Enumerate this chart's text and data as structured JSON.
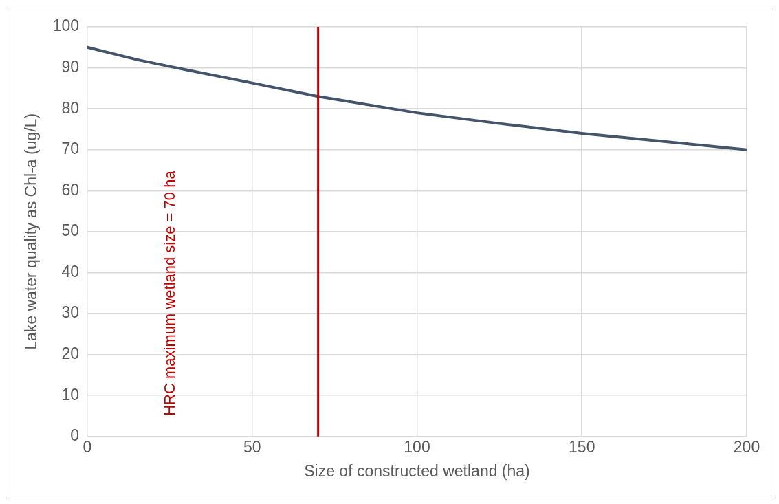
{
  "chart_data": {
    "type": "line",
    "xlabel": "Size of constructed wetland (ha)",
    "ylabel": "Lake water quality as Chl-a (ug/L)",
    "x": [
      0,
      15,
      30,
      50,
      70,
      100,
      125,
      150,
      175,
      200
    ],
    "series": [
      {
        "color": "#44546a",
        "values": [
          95,
          92,
          89.5,
          86.3,
          83,
          79,
          76.4,
          74,
          72,
          70
        ]
      }
    ],
    "xlim": [
      0,
      200
    ],
    "xticks": [
      0,
      50,
      100,
      150,
      200
    ],
    "ylim": [
      0,
      100
    ],
    "yticks": [
      0,
      10,
      20,
      30,
      40,
      50,
      60,
      70,
      80,
      90,
      100
    ],
    "grid": true,
    "legend": false,
    "marker": "none",
    "line_style": "solid",
    "ref_lines": [
      {
        "axis": "x",
        "value": 70,
        "label": "HRC maximum wetland size = 70 ha",
        "color": "#c00000"
      }
    ]
  }
}
